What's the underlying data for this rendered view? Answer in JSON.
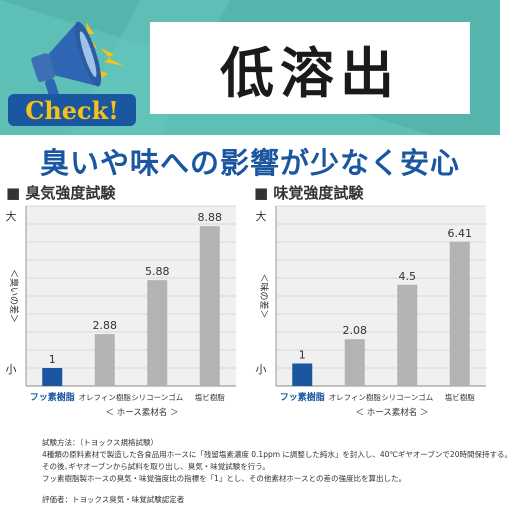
{
  "header": {
    "badge": "Check!",
    "title": "低溶出",
    "icon": "megaphone-icon",
    "colors": {
      "banner": "#5dbfb6",
      "badge": "#1b56a0",
      "badge_text": "#f4c21a"
    }
  },
  "subtitle": "臭いや味への影響が少なく安心",
  "charts": {
    "odor": {
      "title": "■ 臭気強度試験",
      "scale_top": "大",
      "scale_bottom": "小",
      "scale_axis": "＜臭いの差＞"
    },
    "taste": {
      "title": "■ 味覚強度試験",
      "scale_top": "大",
      "scale_bottom": "小",
      "scale_axis": "＜味の差＞"
    }
  },
  "chart_data": [
    {
      "type": "bar",
      "title": "臭気強度試験",
      "xlabel": "＜ ホース素材名 ＞",
      "ylabel": "＜臭いの差＞",
      "categories": [
        "フッ素樹脂",
        "オレフィン樹脂",
        "シリコーンゴム",
        "塩ビ樹脂"
      ],
      "values": [
        1,
        2.88,
        5.88,
        8.88
      ],
      "value_labels": [
        "1",
        "2.88",
        "5.88",
        "8.88"
      ],
      "ylim": [
        0,
        10
      ],
      "grid": true,
      "highlight_color": "#1b56a0",
      "bar_color": "#b3b3b3"
    },
    {
      "type": "bar",
      "title": "味覚強度試験",
      "xlabel": "＜ ホース素材名 ＞",
      "ylabel": "＜味の差＞",
      "categories": [
        "フッ素樹脂",
        "オレフィン樹脂",
        "シリコーンゴム",
        "塩ビ樹脂"
      ],
      "values": [
        1,
        2.08,
        4.5,
        6.41
      ],
      "value_labels": [
        "1",
        "2.08",
        "4.5",
        "6.41"
      ],
      "ylim": [
        0,
        8
      ],
      "grid": true,
      "highlight_color": "#1b56a0",
      "bar_color": "#b3b3b3"
    }
  ],
  "notes": {
    "lines": [
      "試験方法：（トヨックス規格試験）",
      "4種類の原料素材で製造した各食品用ホースに「残留塩素濃度 0.1ppm に調整した純水」を封入し、40℃ギヤオーブンで20時間保持する。",
      "その後､ギヤオーブンから試料を取り出し、臭気・味覚試験を行う。",
      "フッ素樹脂製ホースの臭気・味覚強度比の指標を「1」とし、その他素材ホースとの差の強度比を算出した。"
    ],
    "evaluator": "評価者：トヨックス臭気・味覚試験認定者"
  }
}
